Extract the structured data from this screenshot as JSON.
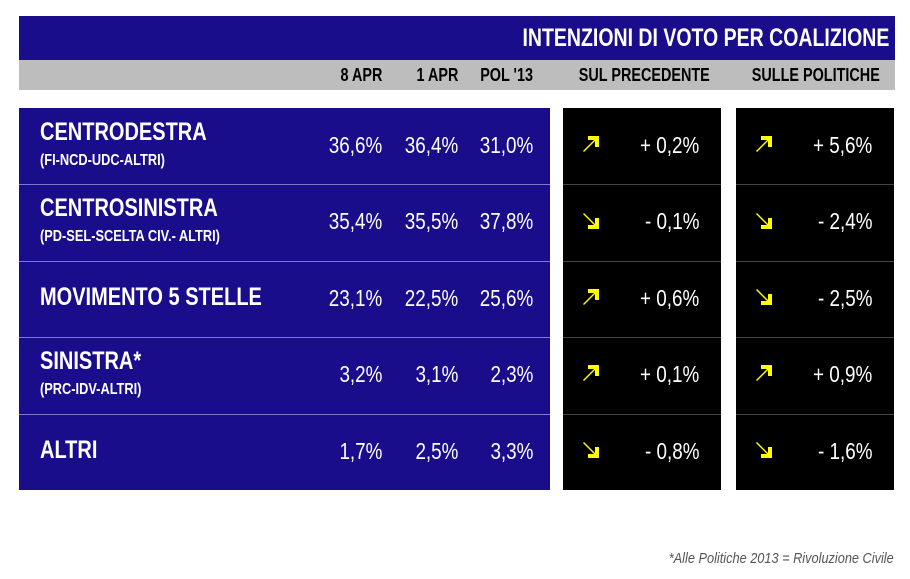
{
  "title": "INTENZIONI DI VOTO PER COALIZIONE",
  "colors": {
    "panel": "#1a0d8c",
    "header": "#bdbdbd",
    "dark_panel": "#000000",
    "arrow": "#ffff00"
  },
  "chart_data": {
    "type": "table",
    "title": "INTENZIONI DI VOTO PER COALIZIONE",
    "columns": [
      "8 APR",
      "1 APR",
      "POL '13",
      "SUL PRECEDENTE",
      "SULLE POLITICHE"
    ],
    "rows": [
      {
        "name": "CENTRODESTRA",
        "sub": "(FI-NCD-UDC-ALTRI)",
        "values": [
          "36,6%",
          "36,4%",
          "31,0%"
        ],
        "prev": {
          "dir": "up",
          "text": "+ 0,2%"
        },
        "pol": {
          "dir": "up",
          "text": "+ 5,6%"
        }
      },
      {
        "name": "CENTROSINISTRA",
        "sub": "(PD-SEL-SCELTA CIV.- ALTRI)",
        "values": [
          "35,4%",
          "35,5%",
          "37,8%"
        ],
        "prev": {
          "dir": "down",
          "text": "- 0,1%"
        },
        "pol": {
          "dir": "down",
          "text": "- 2,4%"
        }
      },
      {
        "name": "MOVIMENTO 5 STELLE",
        "sub": "",
        "values": [
          "23,1%",
          "22,5%",
          "25,6%"
        ],
        "prev": {
          "dir": "up",
          "text": "+ 0,6%"
        },
        "pol": {
          "dir": "down",
          "text": "- 2,5%"
        }
      },
      {
        "name": "SINISTRA*",
        "sub": "(PRC-IDV-ALTRI)",
        "values": [
          "3,2%",
          "3,1%",
          "2,3%"
        ],
        "prev": {
          "dir": "up",
          "text": "+ 0,1%"
        },
        "pol": {
          "dir": "up",
          "text": "+ 0,9%"
        }
      },
      {
        "name": "ALTRI",
        "sub": "",
        "values": [
          "1,7%",
          "2,5%",
          "3,3%"
        ],
        "prev": {
          "dir": "down",
          "text": "- 0,8%"
        },
        "pol": {
          "dir": "down",
          "text": "- 1,6%"
        }
      }
    ]
  },
  "footnote": "*Alle Politiche 2013 = Rivoluzione Civile"
}
